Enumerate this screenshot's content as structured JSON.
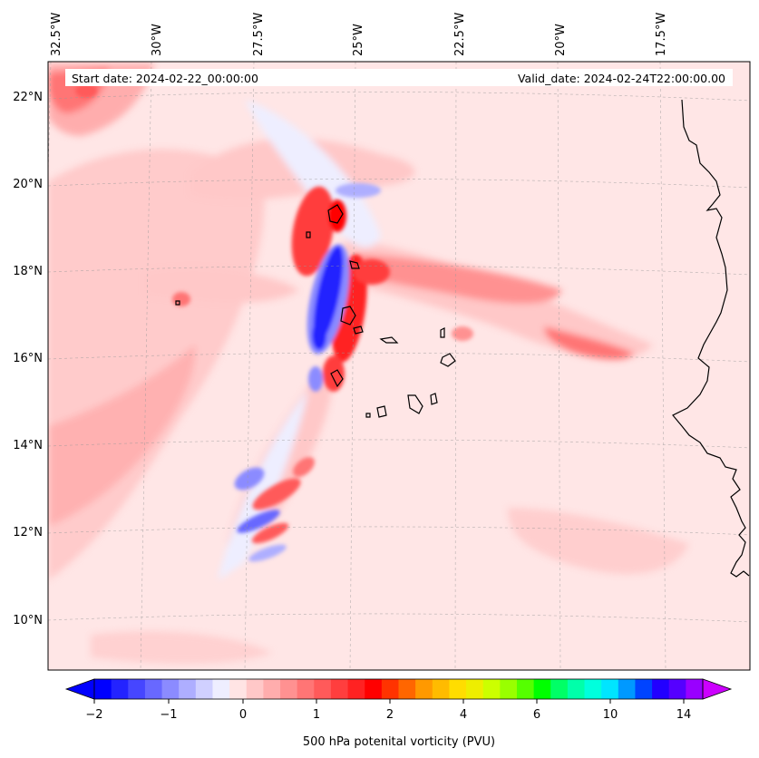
{
  "map": {
    "start_date": "Start date: 2024-02-22_00:00:00",
    "valid_date": "Valid_date: 2024-02-24T22:00:00.00",
    "lon_labels": [
      "32.5°W",
      "30°W",
      "27.5°W",
      "25°W",
      "22.5°W",
      "20°W",
      "17.5°W"
    ],
    "lat_labels": [
      "22°N",
      "20°N",
      "18°N",
      "16°N",
      "14°N",
      "12°N",
      "10°N"
    ]
  },
  "colorbar": {
    "label": "500 hPa potenital vorticity (PVU)",
    "tick_labels": [
      "−2",
      "−1",
      "0",
      "1",
      "2",
      "4",
      "6",
      "10",
      "14"
    ],
    "colors": [
      "#0000ff",
      "#2323ff",
      "#4646ff",
      "#6868ff",
      "#8b8bff",
      "#aeaeff",
      "#d0d0ff",
      "#eeeeff",
      "#ffe4e4",
      "#ffc8c8",
      "#ffadad",
      "#ff9191",
      "#ff7575",
      "#ff5a5a",
      "#ff3e3e",
      "#ff2222",
      "#ff0000",
      "#ff3300",
      "#ff6600",
      "#ff9900",
      "#ffbb00",
      "#ffdd00",
      "#eeee00",
      "#ccff00",
      "#99ff00",
      "#55ff00",
      "#00ff00",
      "#00ff66",
      "#00ffaa",
      "#00ffdd",
      "#00e5ff",
      "#0099ff",
      "#0044ff",
      "#2200ff",
      "#5500ff",
      "#9900ff"
    ],
    "min_color": "#0000ff",
    "max_color": "#cc00ff"
  },
  "colors": {
    "background_field": "#ffe6e6",
    "coastline": "#000000"
  }
}
